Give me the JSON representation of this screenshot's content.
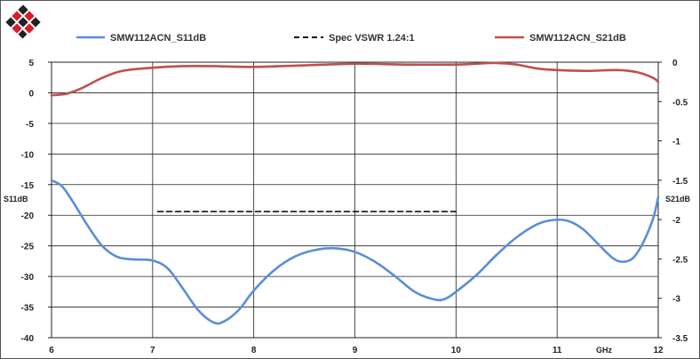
{
  "chart_data": {
    "type": "line",
    "title": "",
    "x_unit_label": "GHz",
    "xlim": [
      6,
      12
    ],
    "x_ticks": [
      "6",
      "7",
      "8",
      "9",
      "10",
      "11",
      "12"
    ],
    "y_left": {
      "label": "S11dB",
      "lim": [
        -40,
        5
      ],
      "ticks": [
        "5",
        "0",
        "-5",
        "-10",
        "-15",
        "-20",
        "-25",
        "-30",
        "-35",
        "-40"
      ]
    },
    "y_right": {
      "label": "S21dB",
      "lim": [
        -3.5,
        0
      ],
      "ticks": [
        "0",
        "-0.5",
        "-1",
        "-1.5",
        "-2",
        "-2.5",
        "-3",
        "-3.5"
      ]
    },
    "grid": true,
    "legend_position": "top",
    "series": [
      {
        "name": "SMW112ACN_S11dB",
        "axis": "left",
        "color": "#5b8ed6",
        "style": "solid",
        "points": [
          [
            6.0,
            -14.3
          ],
          [
            6.1,
            -15.2
          ],
          [
            6.2,
            -17.5
          ],
          [
            6.35,
            -21.5
          ],
          [
            6.5,
            -25.0
          ],
          [
            6.65,
            -26.8
          ],
          [
            6.8,
            -27.2
          ],
          [
            7.0,
            -27.4
          ],
          [
            7.15,
            -28.7
          ],
          [
            7.3,
            -32.0
          ],
          [
            7.45,
            -35.5
          ],
          [
            7.6,
            -37.5
          ],
          [
            7.7,
            -37.4
          ],
          [
            7.85,
            -35.5
          ],
          [
            8.0,
            -32.3
          ],
          [
            8.2,
            -29.0
          ],
          [
            8.4,
            -26.8
          ],
          [
            8.6,
            -25.7
          ],
          [
            8.8,
            -25.4
          ],
          [
            9.0,
            -26.0
          ],
          [
            9.2,
            -27.6
          ],
          [
            9.4,
            -30.0
          ],
          [
            9.6,
            -32.6
          ],
          [
            9.8,
            -33.8
          ],
          [
            9.9,
            -33.6
          ],
          [
            10.0,
            -32.5
          ],
          [
            10.2,
            -29.8
          ],
          [
            10.4,
            -26.5
          ],
          [
            10.6,
            -23.6
          ],
          [
            10.8,
            -21.5
          ],
          [
            10.95,
            -20.8
          ],
          [
            11.1,
            -20.9
          ],
          [
            11.25,
            -22.2
          ],
          [
            11.4,
            -24.6
          ],
          [
            11.55,
            -27.0
          ],
          [
            11.65,
            -27.6
          ],
          [
            11.75,
            -27.0
          ],
          [
            11.85,
            -24.5
          ],
          [
            11.95,
            -20.5
          ],
          [
            12.0,
            -17.0
          ]
        ]
      },
      {
        "name": "Spec VSWR 1.24:1",
        "axis": "left",
        "color": "#111111",
        "style": "dashed",
        "points": [
          [
            7.05,
            -19.4
          ],
          [
            10.0,
            -19.4
          ]
        ]
      },
      {
        "name": "SMW112ACN_S21dB",
        "axis": "right",
        "color": "#c0504d",
        "style": "solid",
        "points": [
          [
            6.0,
            -0.42
          ],
          [
            6.15,
            -0.4
          ],
          [
            6.3,
            -0.33
          ],
          [
            6.5,
            -0.2
          ],
          [
            6.7,
            -0.11
          ],
          [
            7.0,
            -0.07
          ],
          [
            7.3,
            -0.05
          ],
          [
            7.6,
            -0.05
          ],
          [
            8.0,
            -0.06
          ],
          [
            8.5,
            -0.04
          ],
          [
            9.0,
            -0.02
          ],
          [
            9.5,
            -0.03
          ],
          [
            10.0,
            -0.03
          ],
          [
            10.2,
            -0.02
          ],
          [
            10.4,
            -0.01
          ],
          [
            10.6,
            -0.03
          ],
          [
            10.8,
            -0.08
          ],
          [
            11.0,
            -0.1
          ],
          [
            11.3,
            -0.11
          ],
          [
            11.6,
            -0.1
          ],
          [
            11.8,
            -0.13
          ],
          [
            11.95,
            -0.2
          ],
          [
            12.0,
            -0.25
          ]
        ]
      }
    ]
  }
}
